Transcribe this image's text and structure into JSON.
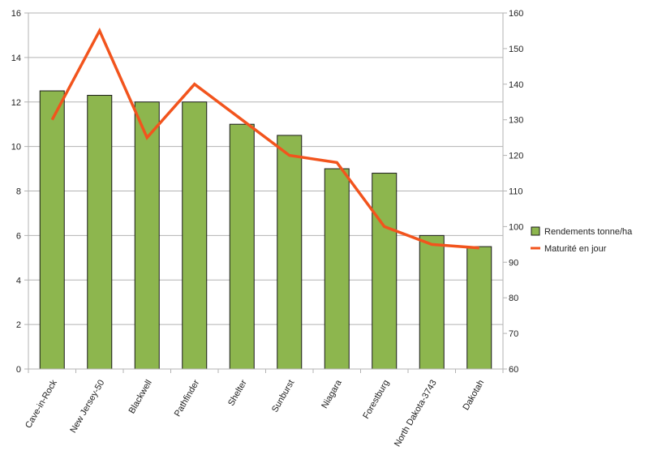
{
  "chart_data": {
    "type": "bar",
    "categories": [
      "Cave-in-Rock",
      "New Jersey-50",
      "Blackwell",
      "Pathfinder",
      "Shelter",
      "Sunburst",
      "Niagara",
      "Forestburg",
      "North Dakota-3743",
      "Dakotah"
    ],
    "series": [
      {
        "name": "Rendements tonne/ha",
        "type": "bar",
        "axis": "left",
        "color": "#8db64e",
        "values": [
          12.5,
          12.3,
          12.0,
          12.0,
          11.0,
          10.5,
          9.0,
          8.8,
          6.0,
          5.5
        ]
      },
      {
        "name": "Maturité en jour",
        "type": "line",
        "axis": "right",
        "color": "#f2541d",
        "values": [
          130,
          155,
          125,
          140,
          130,
          120,
          118,
          100,
          95,
          94
        ]
      }
    ],
    "y_left": {
      "range": [
        0,
        16
      ],
      "ticks": [
        "0",
        "2",
        "4",
        "6",
        "8",
        "10",
        "12",
        "14",
        "16"
      ]
    },
    "y_right": {
      "range": [
        60,
        160
      ],
      "ticks": [
        "60",
        "70",
        "80",
        "90",
        "100",
        "110",
        "120",
        "130",
        "140",
        "150",
        "160"
      ]
    },
    "grid": true,
    "legend_position": "right"
  }
}
